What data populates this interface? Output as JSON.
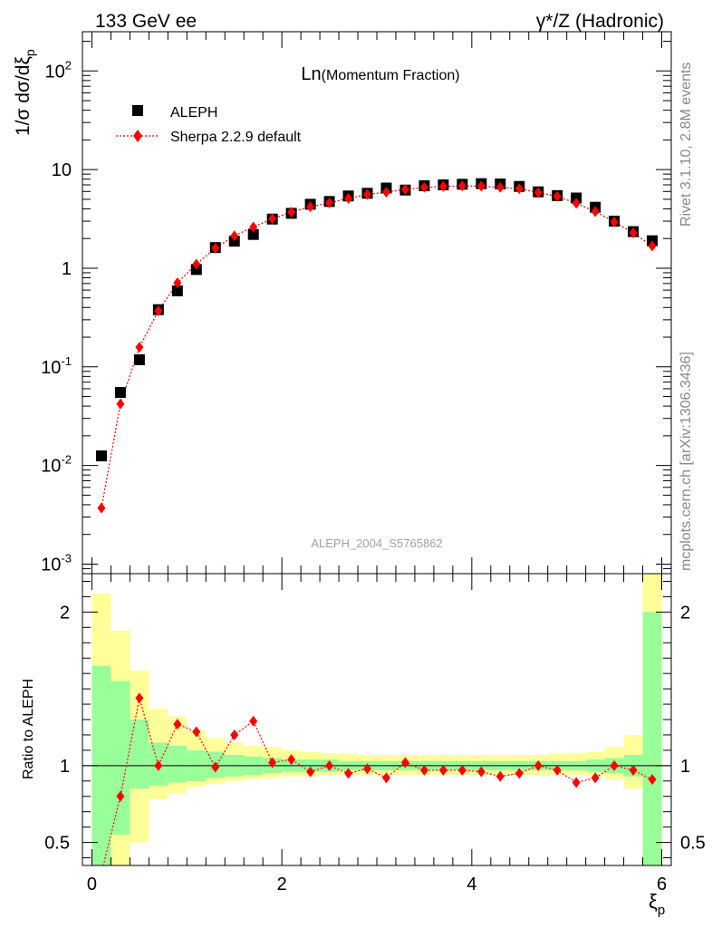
{
  "header": {
    "left": "133 GeV ee",
    "right": "γ*/Z (Hadronic)"
  },
  "side_labels": {
    "rivet": "Rivet 3.1.10,  2.8M events",
    "mcplots": "mcplots.cern.ch [arXiv:1306.3436]"
  },
  "chart_data": [
    {
      "type": "scatter",
      "title": "Ln(Momentum Fraction)",
      "title_main": "Ln",
      "title_sub": "(Momentum Fraction)",
      "ylabel": "1/σ dσ/dξp",
      "ylabel_parts": {
        "main": "1/σ dσ/dξ",
        "sub": "p"
      },
      "xlabel": "ξp",
      "xlabel_parts": {
        "main": "ξ",
        "sub": "p"
      },
      "analysis_tag": "ALEPH_2004_S5765862",
      "yscale": "log",
      "xlim": [
        -0.1,
        6.1
      ],
      "ylim": [
        0.0008,
        250
      ],
      "yticks": [
        {
          "value": 0.001,
          "base": "10",
          "exp": "-3"
        },
        {
          "value": 0.01,
          "base": "10",
          "exp": "-2"
        },
        {
          "value": 0.1,
          "base": "10",
          "exp": "-1"
        },
        {
          "value": 1,
          "label": "1"
        },
        {
          "value": 10,
          "label": "10"
        },
        {
          "value": 100,
          "base": "10",
          "exp": "2"
        }
      ],
      "legend_position": "top-left",
      "x": [
        0.1,
        0.3,
        0.5,
        0.7,
        0.9,
        1.1,
        1.3,
        1.5,
        1.7,
        1.9,
        2.1,
        2.3,
        2.5,
        2.7,
        2.9,
        3.1,
        3.3,
        3.5,
        3.7,
        3.9,
        4.1,
        4.3,
        4.5,
        4.7,
        4.9,
        5.1,
        5.3,
        5.5,
        5.7,
        5.9
      ],
      "series": [
        {
          "name": "ALEPH",
          "color": "#000000",
          "marker": "square",
          "values": [
            0.0125,
            0.055,
            0.118,
            0.38,
            0.59,
            0.97,
            1.62,
            1.88,
            2.2,
            3.15,
            3.6,
            4.45,
            4.75,
            5.4,
            5.75,
            6.5,
            6.2,
            6.85,
            7.0,
            7.1,
            7.2,
            7.15,
            6.75,
            5.95,
            5.45,
            5.15,
            4.15,
            3.0,
            2.35,
            1.9
          ]
        },
        {
          "name": "Sherpa 2.2.9 default",
          "color": "#ff0000",
          "marker": "diamond",
          "line": "dotted",
          "values": [
            0.0037,
            0.042,
            0.158,
            0.37,
            0.71,
            1.1,
            1.6,
            2.13,
            2.62,
            3.17,
            3.7,
            4.2,
            4.6,
            5.1,
            5.6,
            5.9,
            6.3,
            6.6,
            6.75,
            6.83,
            6.8,
            6.6,
            6.4,
            5.85,
            5.35,
            4.55,
            3.75,
            2.95,
            2.28,
            1.68
          ]
        }
      ]
    },
    {
      "type": "line",
      "ylabel": "Ratio to ALEPH",
      "xlabel": "ξp",
      "yscale": "linear",
      "xlim": [
        -0.1,
        6.1
      ],
      "ylim": [
        0.35,
        2.25
      ],
      "xticks": [
        0,
        2,
        4,
        6
      ],
      "yticks": [
        {
          "value": 0.5,
          "label": "0.5"
        },
        {
          "value": 1,
          "label": "1"
        },
        {
          "value": 2,
          "label": "2"
        }
      ],
      "reference_line": 1,
      "x_edges": [
        0.0,
        0.2,
        0.4,
        0.6,
        0.8,
        1.0,
        1.2,
        1.4,
        1.6,
        1.8,
        2.0,
        2.2,
        2.4,
        2.6,
        2.8,
        3.0,
        3.2,
        3.4,
        3.6,
        3.8,
        4.0,
        4.2,
        4.4,
        4.6,
        4.8,
        5.0,
        5.2,
        5.4,
        5.6,
        5.8,
        6.0
      ],
      "bands": {
        "stat_color": "#99ff99",
        "total_color": "#ffff99",
        "stat": [
          [
            0.0,
            1.65
          ],
          [
            0.55,
            1.55
          ],
          [
            0.85,
            1.3
          ],
          [
            0.87,
            1.15
          ],
          [
            0.89,
            1.13
          ],
          [
            0.9,
            1.1
          ],
          [
            0.92,
            1.09
          ],
          [
            0.93,
            1.07
          ],
          [
            0.94,
            1.06
          ],
          [
            0.95,
            1.05
          ],
          [
            0.96,
            1.04
          ],
          [
            0.96,
            1.04
          ],
          [
            0.96,
            1.04
          ],
          [
            0.97,
            1.03
          ],
          [
            0.97,
            1.03
          ],
          [
            0.97,
            1.03
          ],
          [
            0.97,
            1.03
          ],
          [
            0.97,
            1.03
          ],
          [
            0.97,
            1.03
          ],
          [
            0.97,
            1.03
          ],
          [
            0.97,
            1.03
          ],
          [
            0.97,
            1.03
          ],
          [
            0.97,
            1.03
          ],
          [
            0.97,
            1.03
          ],
          [
            0.97,
            1.03
          ],
          [
            0.97,
            1.03
          ],
          [
            0.96,
            1.04
          ],
          [
            0.95,
            1.05
          ],
          [
            0.93,
            1.07
          ],
          [
            0.0,
            2.0
          ]
        ],
        "total": [
          [
            0.0,
            2.12
          ],
          [
            0.0,
            1.88
          ],
          [
            0.5,
            1.62
          ],
          [
            0.78,
            1.37
          ],
          [
            0.82,
            1.32
          ],
          [
            0.86,
            1.23
          ],
          [
            0.88,
            1.18
          ],
          [
            0.9,
            1.15
          ],
          [
            0.91,
            1.13
          ],
          [
            0.92,
            1.12
          ],
          [
            0.93,
            1.1
          ],
          [
            0.93,
            1.09
          ],
          [
            0.94,
            1.08
          ],
          [
            0.94,
            1.08
          ],
          [
            0.94,
            1.07
          ],
          [
            0.94,
            1.07
          ],
          [
            0.94,
            1.07
          ],
          [
            0.94,
            1.07
          ],
          [
            0.94,
            1.07
          ],
          [
            0.94,
            1.07
          ],
          [
            0.94,
            1.07
          ],
          [
            0.94,
            1.07
          ],
          [
            0.94,
            1.07
          ],
          [
            0.94,
            1.07
          ],
          [
            0.94,
            1.08
          ],
          [
            0.94,
            1.08
          ],
          [
            0.93,
            1.09
          ],
          [
            0.91,
            1.12
          ],
          [
            0.85,
            1.2
          ],
          [
            0.0,
            2.5
          ]
        ]
      },
      "x": [
        0.1,
        0.3,
        0.5,
        0.7,
        0.9,
        1.1,
        1.3,
        1.5,
        1.7,
        1.9,
        2.1,
        2.3,
        2.5,
        2.7,
        2.9,
        3.1,
        3.3,
        3.5,
        3.7,
        3.9,
        4.1,
        4.3,
        4.5,
        4.7,
        4.9,
        5.1,
        5.3,
        5.5,
        5.7,
        5.9
      ],
      "series": [
        {
          "name": "Sherpa 2.2.9 default",
          "color": "#ff0000",
          "marker": "diamond",
          "line": "dotted",
          "values": [
            0.3,
            0.8,
            1.44,
            1.0,
            1.27,
            1.22,
            0.99,
            1.2,
            1.29,
            1.02,
            1.04,
            0.96,
            1.0,
            0.95,
            0.98,
            0.92,
            1.02,
            0.97,
            0.97,
            0.97,
            0.96,
            0.93,
            0.95,
            1.0,
            0.97,
            0.89,
            0.92,
            1.0,
            0.97,
            0.91
          ]
        }
      ]
    }
  ]
}
